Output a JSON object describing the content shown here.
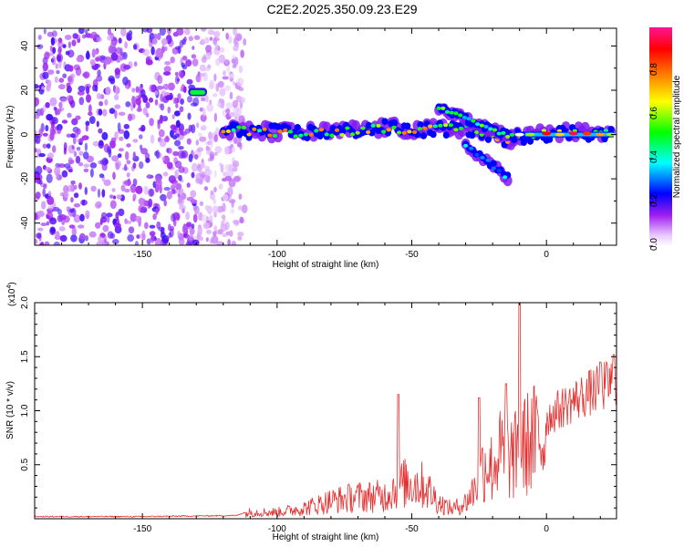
{
  "title": "C2E2.2025.350.09.23.E29",
  "chart_data": [
    {
      "type": "heatmap",
      "xlabel": "Height of straight line (km)",
      "ylabel": "Frequency (Hz)",
      "xlim": [
        -190,
        26
      ],
      "ylim": [
        -50,
        48
      ],
      "x_ticks": [
        -150,
        -100,
        -50,
        0
      ],
      "y_ticks": [
        -40,
        -20,
        0,
        20,
        40
      ],
      "colorbar": {
        "label": "Normalized spectral amplitude",
        "range": [
          0,
          1
        ],
        "ticks": [
          "0.0",
          "0.2",
          "0.4",
          "0.6",
          "0.8"
        ],
        "colors": [
          "#ffffff",
          "#a020f0",
          "#0000ff",
          "#00ffff",
          "#00ff00",
          "#ffff00",
          "#ff8000",
          "#ff0000",
          "#ff1493"
        ]
      },
      "features": [
        {
          "desc": "broadband noise",
          "x": [
            -190,
            -112
          ],
          "y": [
            -50,
            48
          ],
          "amplitude": 0.15
        },
        {
          "desc": "tone",
          "x": [
            -133,
            -126
          ],
          "y": 19,
          "amplitude": 0.5
        },
        {
          "desc": "main trace",
          "points": [
            [
              -120,
              2
            ],
            [
              -100,
              1
            ],
            [
              -80,
              1
            ],
            [
              -60,
              3
            ],
            [
              -45,
              2
            ],
            [
              -30,
              3
            ],
            [
              -15,
              -2
            ],
            [
              -5,
              0
            ],
            [
              10,
              1
            ],
            [
              25,
              0
            ]
          ],
          "amplitude": 0.8
        },
        {
          "desc": "upper branch",
          "points": [
            [
              -40,
              12
            ],
            [
              -30,
              7
            ],
            [
              -20,
              2
            ],
            [
              -12,
              -1
            ]
          ],
          "amplitude": 0.6
        },
        {
          "desc": "lower branch",
          "points": [
            [
              -30,
              -5
            ],
            [
              -22,
              -12
            ],
            [
              -14,
              -20
            ]
          ],
          "amplitude": 0.4
        }
      ]
    },
    {
      "type": "line",
      "xlabel": "Height of straight line (km)",
      "ylabel": "SNR (10 * v/v)",
      "y_multiplier": "(x10",
      "y_multiplier_exp": "4",
      "y_multiplier_close": ")",
      "xlim": [
        -190,
        26
      ],
      "ylim": [
        0,
        2.0
      ],
      "x_ticks": [
        -150,
        -100,
        -50,
        0
      ],
      "y_ticks": [
        "0.5",
        "1.0",
        "1.5",
        "2.0"
      ],
      "color": "#e53030",
      "envelope": {
        "x": [
          -190,
          -150,
          -115,
          -110,
          -100,
          -90,
          -80,
          -70,
          -60,
          -55,
          -50,
          -45,
          -40,
          -35,
          -30,
          -27,
          -25,
          -22,
          -20,
          -18,
          -15,
          -12,
          -10,
          -8,
          -5,
          0,
          5,
          10,
          15,
          20,
          26
        ],
        "y": [
          0.02,
          0.02,
          0.03,
          0.08,
          0.08,
          0.13,
          0.22,
          0.27,
          0.28,
          0.42,
          0.45,
          0.4,
          0.2,
          0.12,
          0.2,
          0.35,
          0.55,
          0.72,
          0.6,
          0.8,
          0.76,
          0.75,
          0.85,
          0.9,
          0.98,
          1.0,
          1.1,
          1.18,
          1.25,
          1.3,
          1.4
        ]
      },
      "peaks": [
        {
          "x": -55,
          "y": 1.15
        },
        {
          "x": -25,
          "y": 1.12
        },
        {
          "x": -15,
          "y": 1.25
        },
        {
          "x": -10,
          "y": 2.0
        },
        {
          "x": 20,
          "y": 1.45
        },
        {
          "x": 25,
          "y": 1.52
        }
      ]
    }
  ]
}
